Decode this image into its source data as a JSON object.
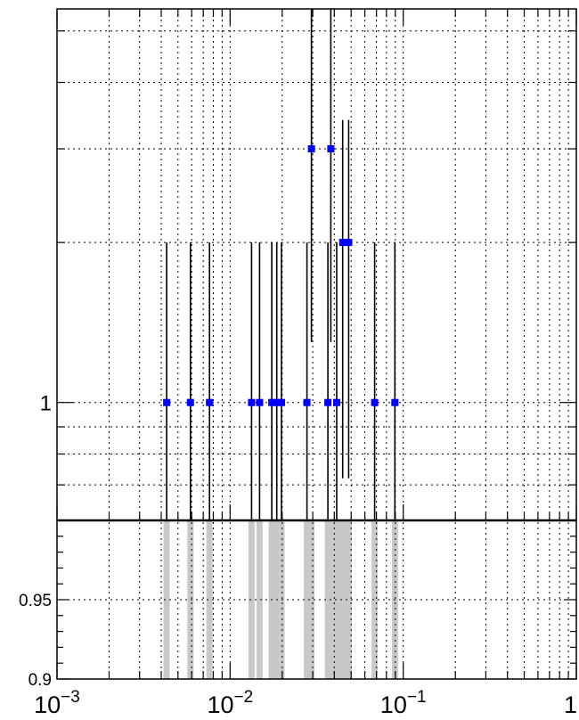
{
  "chart_data": [
    {
      "type": "scatter",
      "x_scale": "log",
      "y_scale": "log",
      "xlim": [
        0.001,
        1
      ],
      "ylim": [
        0.6,
        5.5
      ],
      "grid": true,
      "y_tick_labels": [
        {
          "value": 1,
          "label": "1"
        }
      ],
      "points": [
        {
          "x": 0.0043,
          "y": 1,
          "y_low": 0.6,
          "y_high": 2.0
        },
        {
          "x": 0.0059,
          "y": 1,
          "y_low": 0.6,
          "y_high": 2.0
        },
        {
          "x": 0.0076,
          "y": 1,
          "y_low": 0.6,
          "y_high": 2.0
        },
        {
          "x": 0.0133,
          "y": 1,
          "y_low": 0.6,
          "y_high": 2.0
        },
        {
          "x": 0.0148,
          "y": 1,
          "y_low": 0.6,
          "y_high": 2.0
        },
        {
          "x": 0.0174,
          "y": 1,
          "y_low": 0.6,
          "y_high": 2.0
        },
        {
          "x": 0.0186,
          "y": 1,
          "y_low": 0.6,
          "y_high": 2.0
        },
        {
          "x": 0.0198,
          "y": 1,
          "y_low": 0.6,
          "y_high": 2.0
        },
        {
          "x": 0.0278,
          "y": 1,
          "y_low": 0.6,
          "y_high": 2.0
        },
        {
          "x": 0.0295,
          "y": 3,
          "y_low": 1.3,
          "y_high": 5.5
        },
        {
          "x": 0.0367,
          "y": 1,
          "y_low": 0.6,
          "y_high": 2.0
        },
        {
          "x": 0.0382,
          "y": 3,
          "y_low": 1.3,
          "y_high": 5.5
        },
        {
          "x": 0.0413,
          "y": 1,
          "y_low": 0.6,
          "y_high": 2.0
        },
        {
          "x": 0.0447,
          "y": 2,
          "y_low": 0.72,
          "y_high": 3.4
        },
        {
          "x": 0.0484,
          "y": 2,
          "y_low": 0.72,
          "y_high": 3.4
        },
        {
          "x": 0.0684,
          "y": 1,
          "y_low": 0.6,
          "y_high": 2.0
        },
        {
          "x": 0.0895,
          "y": 1,
          "y_low": 0.6,
          "y_high": 2.0
        }
      ]
    },
    {
      "type": "bar",
      "x_scale": "log",
      "xlim": [
        0.001,
        1
      ],
      "ylim": [
        0.9,
        1.0
      ],
      "grid": true,
      "y_tick_labels": [
        {
          "value": 0.95,
          "label": "0.95"
        },
        {
          "value": 0.9,
          "label": "0.9"
        }
      ],
      "x_tick_labels": [
        {
          "value": 0.001,
          "base": "10",
          "exp": "−3"
        },
        {
          "value": 0.01,
          "base": "10",
          "exp": "−2"
        },
        {
          "value": 0.1,
          "base": "10",
          "exp": "−1"
        },
        {
          "value": 1,
          "base": "1",
          "exp": ""
        }
      ],
      "bands": [
        {
          "x": 0.0043,
          "value": 1.0
        },
        {
          "x": 0.0059,
          "value": 1.0
        },
        {
          "x": 0.0076,
          "value": 1.0
        },
        {
          "x": 0.0133,
          "value": 1.0
        },
        {
          "x": 0.0148,
          "value": 1.0
        },
        {
          "x": 0.0174,
          "value": 1.0
        },
        {
          "x": 0.0186,
          "value": 1.0
        },
        {
          "x": 0.0198,
          "value": 1.0
        },
        {
          "x": 0.0278,
          "value": 1.0
        },
        {
          "x": 0.0295,
          "value": 1.0
        },
        {
          "x": 0.0367,
          "value": 1.0
        },
        {
          "x": 0.0382,
          "value": 1.0
        },
        {
          "x": 0.0413,
          "value": 1.0
        },
        {
          "x": 0.0447,
          "value": 1.0
        },
        {
          "x": 0.0484,
          "value": 1.0
        },
        {
          "x": 0.0684,
          "value": 1.0
        },
        {
          "x": 0.0895,
          "value": 1.0
        }
      ]
    }
  ],
  "colors": {
    "marker": "#0000ff",
    "error_bar": "#000000",
    "band": "#c8c8c8",
    "grid": "#000000"
  }
}
